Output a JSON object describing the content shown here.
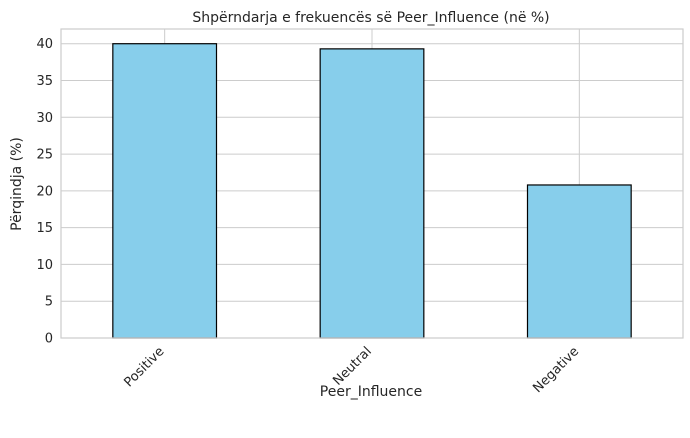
{
  "chart_data": {
    "type": "bar",
    "title": "Shpërndarja e frekuencës së Peer_Influence (në %)",
    "xlabel": "Peer_Influence",
    "ylabel": "Përqindja (%)",
    "categories": [
      "Positive",
      "Neutral",
      "Negative"
    ],
    "values": [
      40.0,
      39.3,
      20.8
    ],
    "ylim": [
      0,
      42
    ],
    "yticks": [
      "0",
      "5",
      "10",
      "15",
      "20",
      "25",
      "30",
      "35",
      "40"
    ],
    "grid": true,
    "legend": "none",
    "colors": {
      "bar_fill": "#87CEEB",
      "bar_edge": "#000000",
      "grid": "#CCCCCC",
      "frame": "#CCCCCC"
    }
  }
}
